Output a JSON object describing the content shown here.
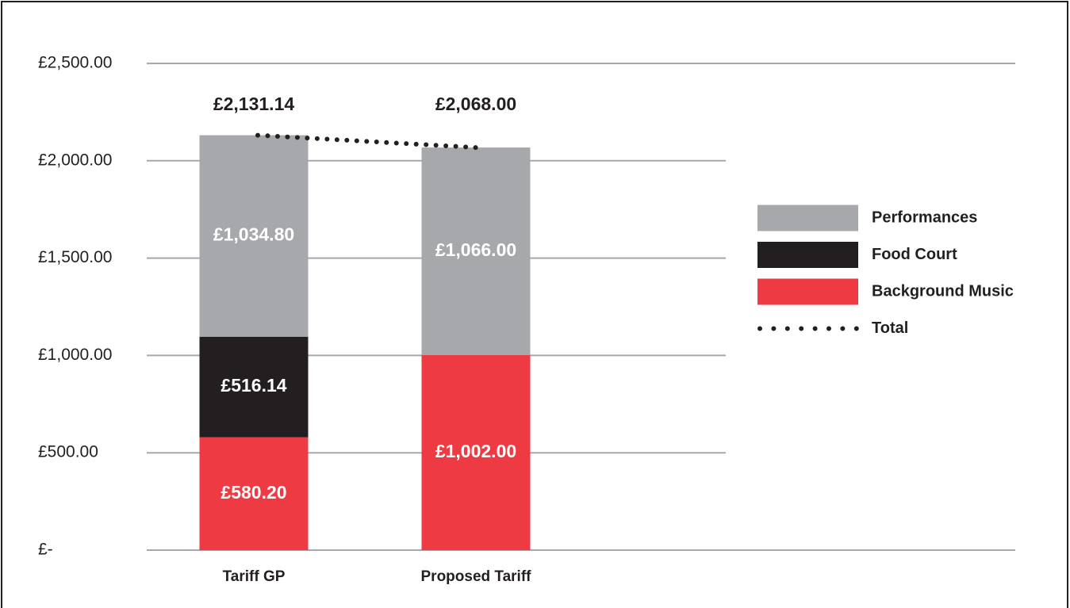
{
  "chart_data": {
    "type": "bar",
    "stacked": true,
    "categories": [
      "Tariff GP",
      "Proposed Tariff"
    ],
    "series": [
      {
        "name": "Background Music",
        "color": "#ee3a43",
        "values": [
          580.2,
          1002.0
        ],
        "value_labels": [
          "£580.20",
          "£1,002.00"
        ]
      },
      {
        "name": "Food Court",
        "color": "#231f20",
        "values": [
          516.14,
          0
        ],
        "value_labels": [
          "£516.14",
          null
        ]
      },
      {
        "name": "Performances",
        "color": "#a7a8ab",
        "values": [
          1034.8,
          1066.0
        ],
        "value_labels": [
          "£1,034.80",
          "£1,066.00"
        ]
      },
      {
        "name": "Total",
        "type": "line",
        "style": "dotted",
        "color": "#231f20",
        "values": [
          2131.14,
          2068.0
        ],
        "value_labels": [
          "£2,131.14",
          "£2,068.00"
        ]
      }
    ],
    "ylim": [
      0,
      2500
    ],
    "yticks": [
      {
        "value": 0,
        "label": "£-"
      },
      {
        "value": 500,
        "label": "£500.00"
      },
      {
        "value": 1000,
        "label": "£1,000.00"
      },
      {
        "value": 1500,
        "label": "£1,500.00"
      },
      {
        "value": 2000,
        "label": "£2,000.00"
      },
      {
        "value": 2500,
        "label": "£2,500.00"
      }
    ],
    "grid": true,
    "legend": "right"
  }
}
